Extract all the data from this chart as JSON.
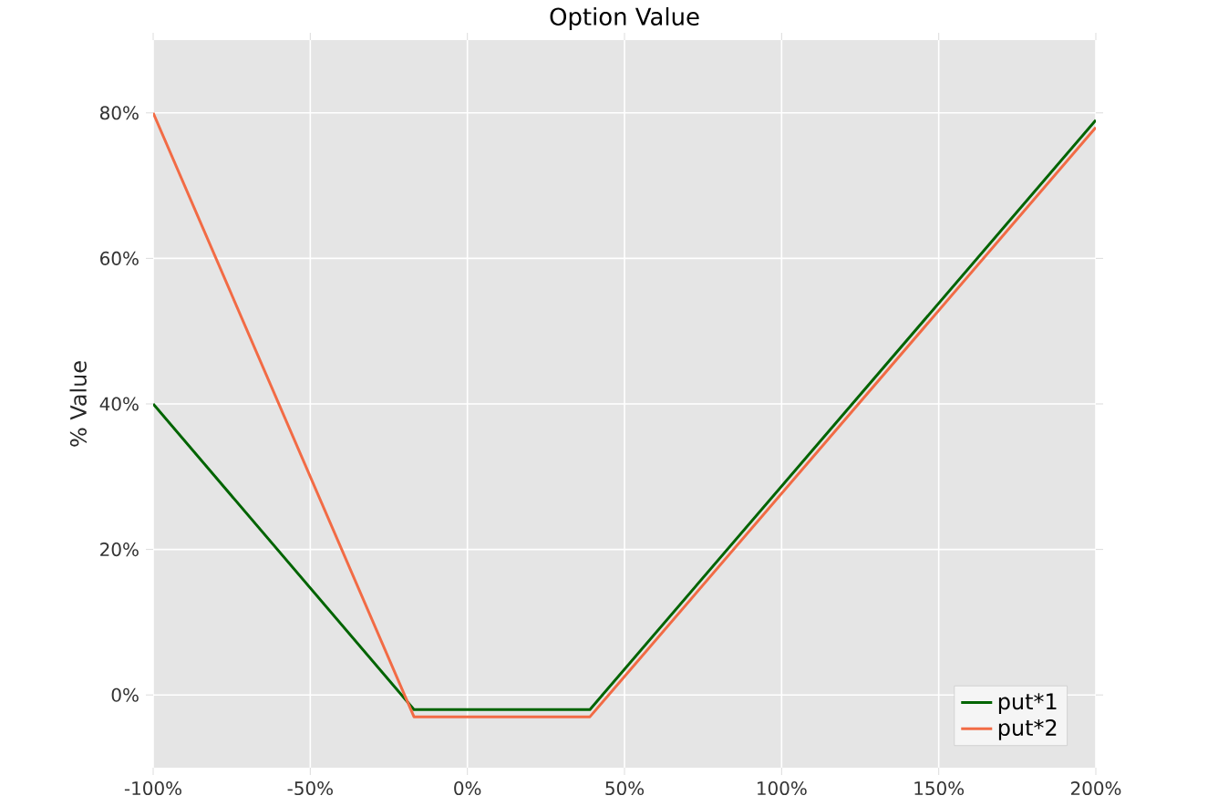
{
  "chart_data": {
    "type": "line",
    "title": "Option Value",
    "ylabel": "% Value",
    "x": [
      -100,
      -17,
      39,
      200
    ],
    "series": [
      {
        "name": "put*1",
        "color": "#006400",
        "values": [
          40,
          -2,
          -2,
          79
        ]
      },
      {
        "name": "put*2",
        "color": "#f26b45",
        "values": [
          80,
          -3,
          -3,
          78
        ]
      }
    ],
    "xlim": [
      -100,
      200
    ],
    "ylim": [
      -10,
      90
    ],
    "xticks": [
      {
        "value": -100,
        "label": "-100%"
      },
      {
        "value": -50,
        "label": "-50%"
      },
      {
        "value": 0,
        "label": "0%"
      },
      {
        "value": 50,
        "label": "50%"
      },
      {
        "value": 100,
        "label": "100%"
      },
      {
        "value": 150,
        "label": "150%"
      },
      {
        "value": 200,
        "label": "200%"
      }
    ],
    "yticks": [
      {
        "value": 0,
        "label": "0%"
      },
      {
        "value": 20,
        "label": "20%"
      },
      {
        "value": 40,
        "label": "40%"
      },
      {
        "value": 60,
        "label": "60%"
      },
      {
        "value": 80,
        "label": "80%"
      }
    ],
    "grid": true,
    "legend": "bottom right",
    "marker": "none",
    "line_style": "solid"
  }
}
